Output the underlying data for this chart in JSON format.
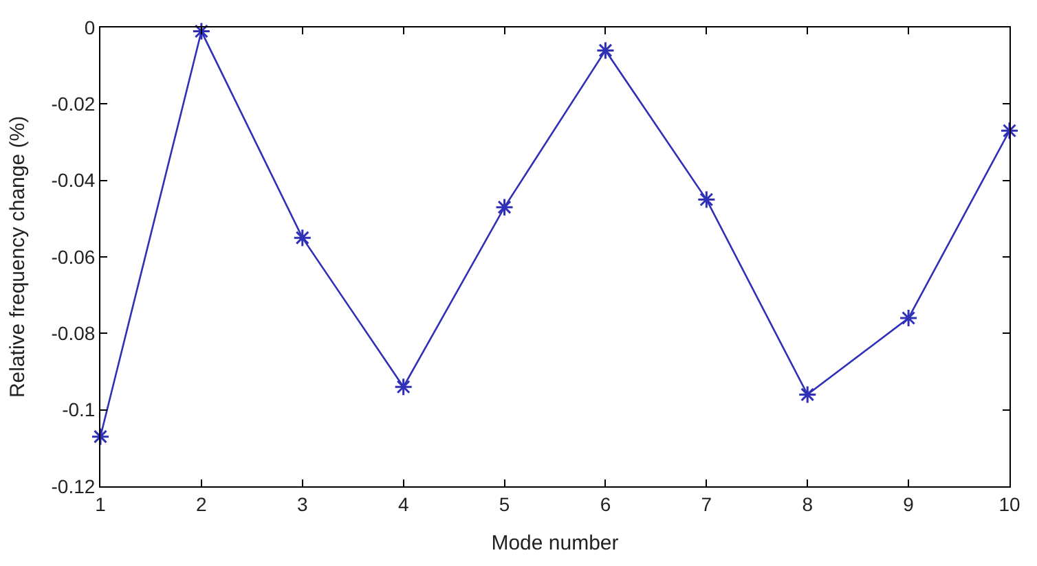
{
  "chart_data": {
    "type": "line",
    "xlabel": "Mode number",
    "ylabel": "Relative frequency change (%)",
    "x": [
      1,
      2,
      3,
      4,
      5,
      6,
      7,
      8,
      9,
      10
    ],
    "series": [
      {
        "color": "#2f2fb8",
        "values": [
          -0.107,
          -0.001,
          -0.055,
          -0.094,
          -0.047,
          -0.006,
          -0.045,
          -0.096,
          -0.076,
          -0.027
        ]
      }
    ],
    "xlim": [
      1,
      10
    ],
    "xticks": [
      1,
      2,
      3,
      4,
      5,
      6,
      7,
      8,
      9,
      10
    ],
    "ylim": [
      -0.12,
      0
    ],
    "yticks": [
      {
        "value": -0.12,
        "label": "-0.12"
      },
      {
        "value": -0.1,
        "label": "-0.1"
      },
      {
        "value": -0.08,
        "label": "-0.08"
      },
      {
        "value": -0.06,
        "label": "-0.06"
      },
      {
        "value": -0.04,
        "label": "-0.04"
      },
      {
        "value": -0.02,
        "label": "-0.02"
      },
      {
        "value": 0,
        "label": "0"
      }
    ],
    "marker": "cross",
    "line_style": "solid"
  }
}
